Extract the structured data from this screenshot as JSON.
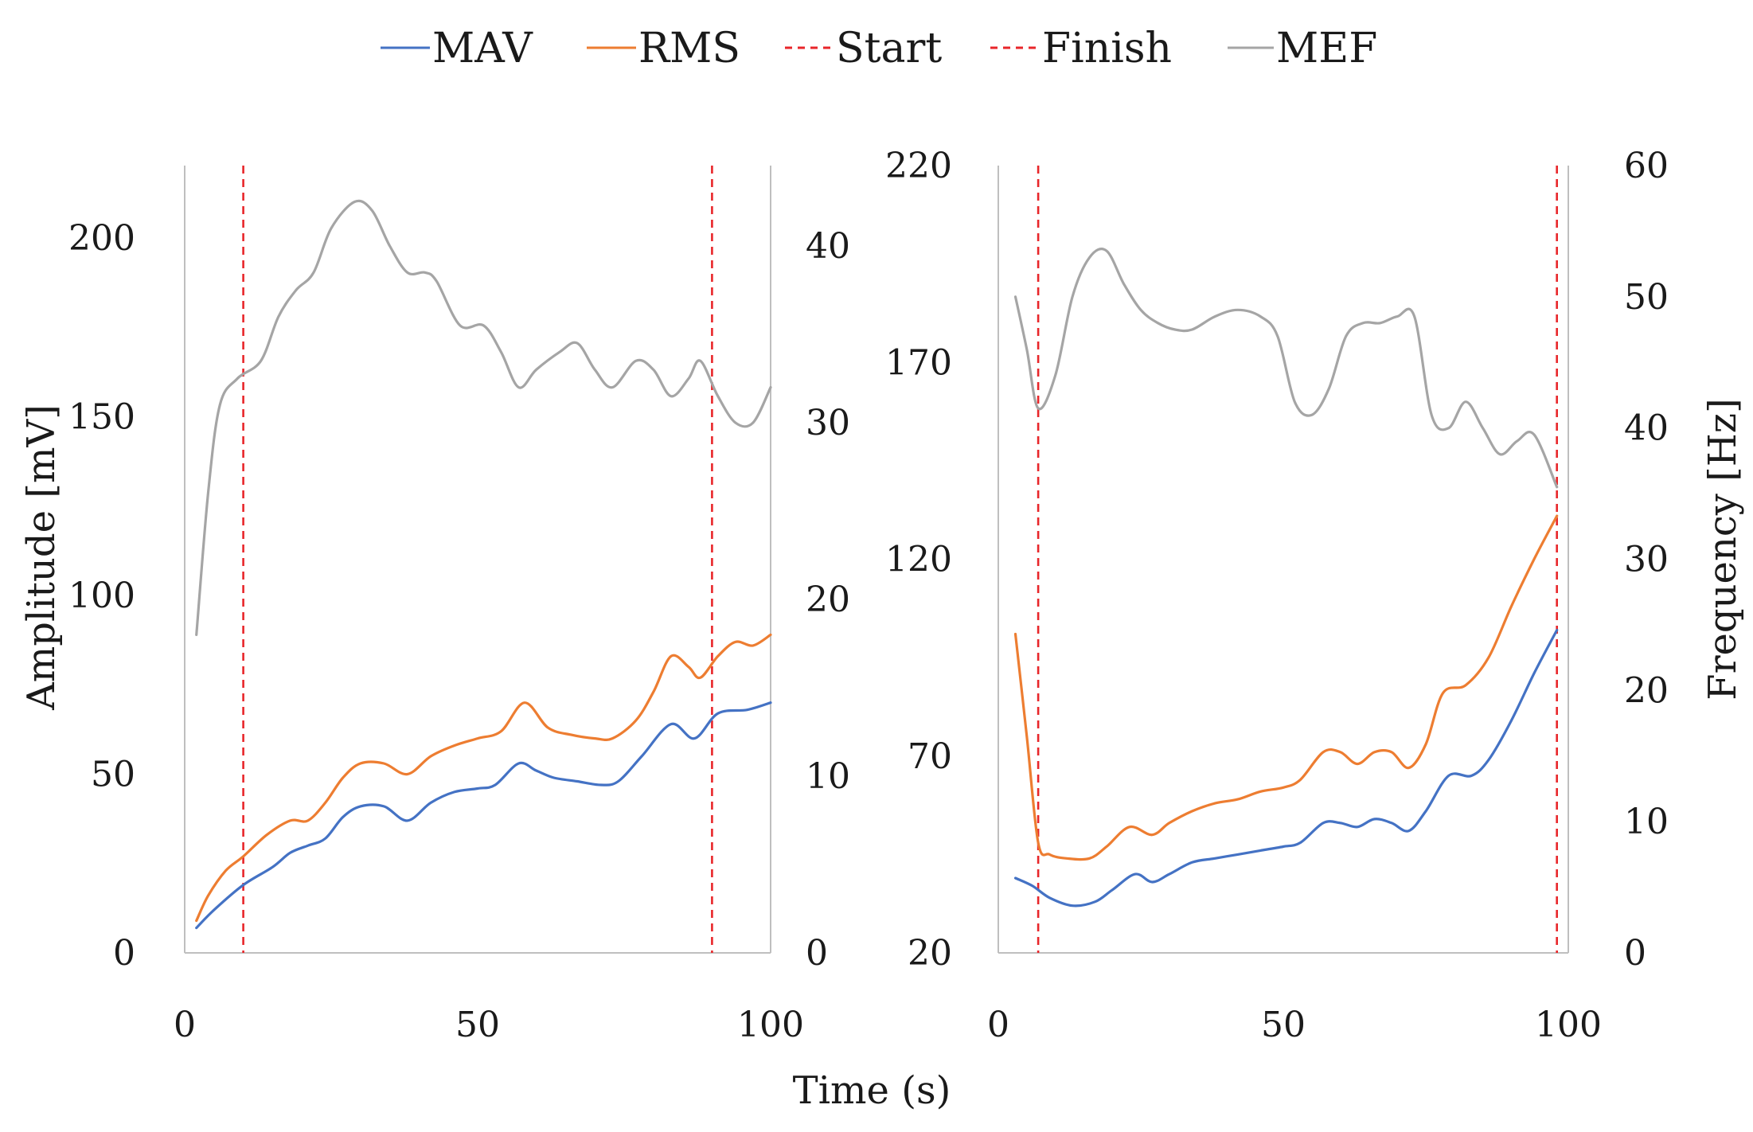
{
  "legend": [
    {
      "label": "MAV",
      "color": "#4472c4",
      "dash": false
    },
    {
      "label": "RMS",
      "color": "#ed7d31",
      "dash": false
    },
    {
      "label": "Start",
      "color": "#e8262a",
      "dash": true
    },
    {
      "label": "Finish",
      "color": "#e8262a",
      "dash": true
    },
    {
      "label": "MEF",
      "color": "#a5a5a5",
      "dash": false
    }
  ],
  "labels": {
    "amplitude": "Amplitude [mV]",
    "frequency": "Frequency [Hz]",
    "time": "Time (s)"
  },
  "chart_data": [
    {
      "type": "line",
      "title": "",
      "xlabel": "Time (s)",
      "ylabel": "Amplitude [mV]",
      "y2label": "",
      "xlim": [
        0,
        100
      ],
      "ylim": [
        0,
        220
      ],
      "y2lim": [
        0,
        45
      ],
      "xticks": [
        "0",
        "50",
        "100"
      ],
      "yticks": [
        "0",
        "50",
        "100",
        "150",
        "200"
      ],
      "yticks_values": [
        0,
        50,
        100,
        150,
        200
      ],
      "y2ticks": [
        "0",
        "10",
        "20",
        "30",
        "40"
      ],
      "y2ticks_values": [
        0,
        10,
        20,
        30,
        40
      ],
      "start": 10,
      "finish": 90,
      "series": [
        {
          "name": "MAV",
          "axis": "left",
          "color": "#4472c4",
          "points": [
            [
              2,
              7
            ],
            [
              5,
              12
            ],
            [
              10,
              19
            ],
            [
              15,
              24
            ],
            [
              18,
              28
            ],
            [
              21,
              30
            ],
            [
              24,
              32
            ],
            [
              27,
              38
            ],
            [
              30,
              41
            ],
            [
              34,
              41
            ],
            [
              38,
              37
            ],
            [
              42,
              42
            ],
            [
              46,
              45
            ],
            [
              50,
              46
            ],
            [
              53,
              47
            ],
            [
              57,
              53
            ],
            [
              60,
              51
            ],
            [
              63,
              49
            ],
            [
              67,
              48
            ],
            [
              71,
              47
            ],
            [
              74,
              48
            ],
            [
              78,
              55
            ],
            [
              83,
              64
            ],
            [
              87,
              60
            ],
            [
              91,
              67
            ],
            [
              96,
              68
            ],
            [
              100,
              70
            ]
          ]
        },
        {
          "name": "RMS",
          "axis": "left",
          "color": "#ed7d31",
          "points": [
            [
              2,
              9
            ],
            [
              4,
              16
            ],
            [
              7,
              23
            ],
            [
              10,
              27
            ],
            [
              14,
              33
            ],
            [
              18,
              37
            ],
            [
              21,
              37
            ],
            [
              24,
              42
            ],
            [
              27,
              49
            ],
            [
              30,
              53
            ],
            [
              34,
              53
            ],
            [
              38,
              50
            ],
            [
              42,
              55
            ],
            [
              46,
              58
            ],
            [
              50,
              60
            ],
            [
              54,
              62
            ],
            [
              58,
              70
            ],
            [
              62,
              63
            ],
            [
              66,
              61
            ],
            [
              70,
              60
            ],
            [
              73,
              60
            ],
            [
              77,
              65
            ],
            [
              80,
              73
            ],
            [
              83,
              83
            ],
            [
              86,
              80
            ],
            [
              88,
              77
            ],
            [
              91,
              83
            ],
            [
              94,
              87
            ],
            [
              97,
              86
            ],
            [
              100,
              89
            ]
          ]
        },
        {
          "name": "MEF",
          "axis": "right",
          "color": "#a5a5a5",
          "points": [
            [
              2,
              18
            ],
            [
              4,
              26
            ],
            [
              6,
              31
            ],
            [
              9,
              32.5
            ],
            [
              13,
              33.5
            ],
            [
              16,
              36
            ],
            [
              19,
              37.5
            ],
            [
              22,
              38.5
            ],
            [
              25,
              41
            ],
            [
              29,
              42.5
            ],
            [
              32,
              42
            ],
            [
              35,
              40
            ],
            [
              38,
              38.5
            ],
            [
              41,
              38.5
            ],
            [
              43,
              38
            ],
            [
              47,
              35.5
            ],
            [
              51,
              35.5
            ],
            [
              54,
              34
            ],
            [
              57,
              32
            ],
            [
              60,
              33
            ],
            [
              64,
              34
            ],
            [
              67,
              34.5
            ],
            [
              70,
              33
            ],
            [
              73,
              32
            ],
            [
              77,
              33.5
            ],
            [
              80,
              33
            ],
            [
              83,
              31.5
            ],
            [
              86,
              32.5
            ],
            [
              88,
              33.5
            ],
            [
              91,
              31.5
            ],
            [
              94,
              30
            ],
            [
              97,
              30
            ],
            [
              100,
              32
            ]
          ]
        }
      ]
    },
    {
      "type": "line",
      "title": "",
      "xlabel": "Time (s)",
      "ylabel": "",
      "y2label": "Frequency [Hz]",
      "xlim": [
        0,
        100
      ],
      "ylim": [
        20,
        220
      ],
      "y2lim": [
        0,
        60
      ],
      "xticks": [
        "0",
        "50",
        "100"
      ],
      "yticks": [
        "20",
        "70",
        "120",
        "170",
        "220"
      ],
      "yticks_values": [
        20,
        70,
        120,
        170,
        220
      ],
      "y2ticks": [
        "0",
        "10",
        "20",
        "30",
        "40",
        "50",
        "60"
      ],
      "y2ticks_values": [
        0,
        10,
        20,
        30,
        40,
        50,
        60
      ],
      "start": 7,
      "finish": 98,
      "series": [
        {
          "name": "MAV",
          "axis": "left",
          "color": "#4472c4",
          "points": [
            [
              3,
              39
            ],
            [
              6,
              37
            ],
            [
              9,
              34
            ],
            [
              13,
              32
            ],
            [
              17,
              33
            ],
            [
              20,
              36
            ],
            [
              24,
              40
            ],
            [
              27,
              38
            ],
            [
              30,
              40
            ],
            [
              34,
              43
            ],
            [
              38,
              44
            ],
            [
              42,
              45
            ],
            [
              46,
              46
            ],
            [
              50,
              47
            ],
            [
              53,
              48
            ],
            [
              57,
              53
            ],
            [
              60,
              53
            ],
            [
              63,
              52
            ],
            [
              66,
              54
            ],
            [
              69,
              53
            ],
            [
              72,
              51
            ],
            [
              75,
              56
            ],
            [
              79,
              65
            ],
            [
              83,
              65
            ],
            [
              86,
              69
            ],
            [
              90,
              79
            ],
            [
              94,
              91
            ],
            [
              98,
              102
            ]
          ]
        },
        {
          "name": "RMS",
          "axis": "left",
          "color": "#ed7d31",
          "points": [
            [
              3,
              101
            ],
            [
              5,
              75
            ],
            [
              7,
              48
            ],
            [
              9,
              45
            ],
            [
              12,
              44
            ],
            [
              16,
              44
            ],
            [
              19,
              47
            ],
            [
              23,
              52
            ],
            [
              27,
              50
            ],
            [
              30,
              53
            ],
            [
              34,
              56
            ],
            [
              38,
              58
            ],
            [
              42,
              59
            ],
            [
              46,
              61
            ],
            [
              50,
              62
            ],
            [
              53,
              64
            ],
            [
              57,
              71
            ],
            [
              60,
              71
            ],
            [
              63,
              68
            ],
            [
              66,
              71
            ],
            [
              69,
              71
            ],
            [
              72,
              67
            ],
            [
              75,
              73
            ],
            [
              78,
              86
            ],
            [
              82,
              88
            ],
            [
              86,
              95
            ],
            [
              90,
              108
            ],
            [
              94,
              120
            ],
            [
              98,
              131
            ]
          ]
        },
        {
          "name": "MEF",
          "axis": "right",
          "color": "#a5a5a5",
          "points": [
            [
              3,
              50
            ],
            [
              5,
              46
            ],
            [
              7,
              41.5
            ],
            [
              10,
              44
            ],
            [
              13,
              50
            ],
            [
              16,
              53
            ],
            [
              19,
              53.5
            ],
            [
              22,
              51
            ],
            [
              25,
              49
            ],
            [
              28,
              48
            ],
            [
              31,
              47.5
            ],
            [
              34,
              47.5
            ],
            [
              38,
              48.5
            ],
            [
              42,
              49
            ],
            [
              46,
              48.5
            ],
            [
              49,
              47
            ],
            [
              52,
              42
            ],
            [
              55,
              41
            ],
            [
              58,
              43
            ],
            [
              61,
              47
            ],
            [
              64,
              48
            ],
            [
              67,
              48
            ],
            [
              70,
              48.5
            ],
            [
              73,
              48.5
            ],
            [
              76,
              41
            ],
            [
              79,
              40
            ],
            [
              82,
              42
            ],
            [
              85,
              40
            ],
            [
              88,
              38
            ],
            [
              91,
              39
            ],
            [
              94,
              39.5
            ],
            [
              98,
              35.5
            ]
          ]
        }
      ]
    }
  ]
}
